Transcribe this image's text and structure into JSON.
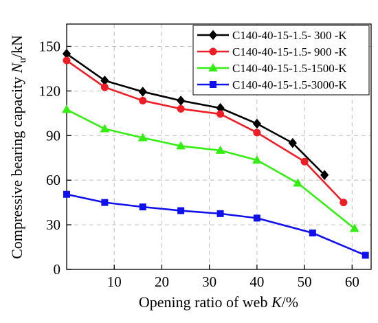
{
  "chart_data": {
    "type": "line",
    "xlabel": {
      "prefix": "Opening ratio of web ",
      "italic": "K",
      "suffix": "/%"
    },
    "ylabel": {
      "prefix": "Compressive bearing capacity ",
      "italic": "N",
      "sub": "u",
      "suffix": "/kN"
    },
    "xlim": [
      0,
      64
    ],
    "ylim": [
      0,
      165
    ],
    "xticks": [
      10,
      20,
      30,
      40,
      50,
      60
    ],
    "yticks": [
      0,
      30,
      60,
      90,
      120,
      150
    ],
    "grid": true,
    "legend_position": "top-right",
    "series": [
      {
        "name": "C140-40-15-1.5- 300 -K",
        "color": "#000000",
        "marker": "diamond",
        "x": [
          0,
          8,
          16,
          24,
          32.3,
          40,
          47.5,
          54.2
        ],
        "y": [
          145,
          127,
          119.5,
          113.5,
          108.5,
          98,
          85,
          63.5
        ]
      },
      {
        "name": "C140-40-15-1.5- 900 -K",
        "color": "#ee1c24",
        "marker": "circle",
        "x": [
          0,
          8,
          16,
          24,
          32.3,
          40,
          50,
          58.2
        ],
        "y": [
          140.5,
          122.5,
          113.5,
          108,
          104.5,
          92,
          72.5,
          45
        ]
      },
      {
        "name": "C140-40-15-1.5-1500-K",
        "color": "#33ee11",
        "marker": "triangle",
        "x": [
          0,
          8,
          16,
          24,
          32.3,
          40,
          48.6,
          60.5
        ],
        "y": [
          107.5,
          94.5,
          88.5,
          83,
          80,
          73.5,
          58,
          27.5
        ]
      },
      {
        "name": "C140-40-15-1.5-3000-K",
        "color": "#1010ee",
        "marker": "square",
        "x": [
          0,
          8,
          16,
          24,
          32.3,
          40,
          51.7,
          62.8
        ],
        "y": [
          50.5,
          45,
          42,
          39.5,
          37.5,
          34.5,
          24.5,
          9.5
        ]
      }
    ]
  }
}
